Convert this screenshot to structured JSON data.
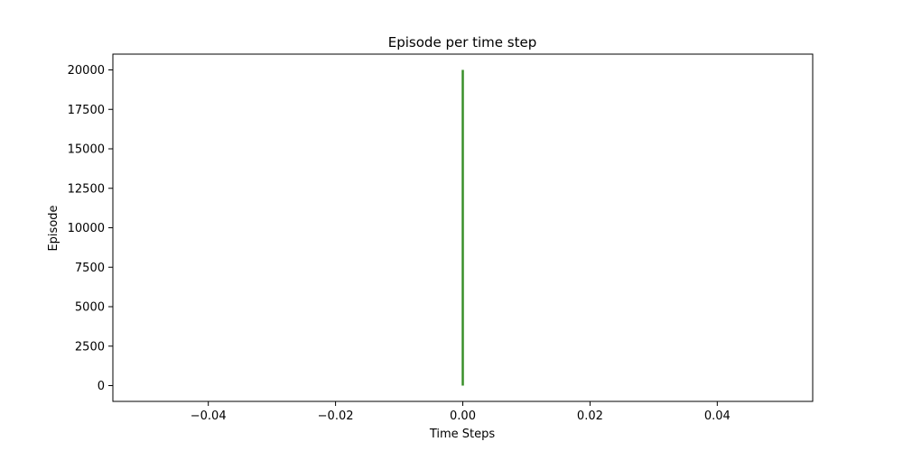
{
  "chart_data": {
    "type": "line",
    "title": "Episode per time step",
    "xlabel": "Time Steps",
    "ylabel": "Episode",
    "xlim": [
      -0.055,
      0.055
    ],
    "ylim": [
      -1000,
      21000
    ],
    "x_ticks": [
      -0.04,
      -0.02,
      0.0,
      0.02,
      0.04
    ],
    "x_tick_labels": [
      "−0.04",
      "−0.02",
      "0.00",
      "0.02",
      "0.04"
    ],
    "y_ticks": [
      0,
      2500,
      5000,
      7500,
      10000,
      12500,
      15000,
      17500,
      20000
    ],
    "y_tick_labels": [
      "0",
      "2500",
      "5000",
      "7500",
      "10000",
      "12500",
      "15000",
      "17500",
      "20000"
    ],
    "grid": false,
    "series": [
      {
        "color": "#3a8f2a",
        "x": [
          0,
          0
        ],
        "y": [
          0,
          20000
        ]
      }
    ]
  }
}
